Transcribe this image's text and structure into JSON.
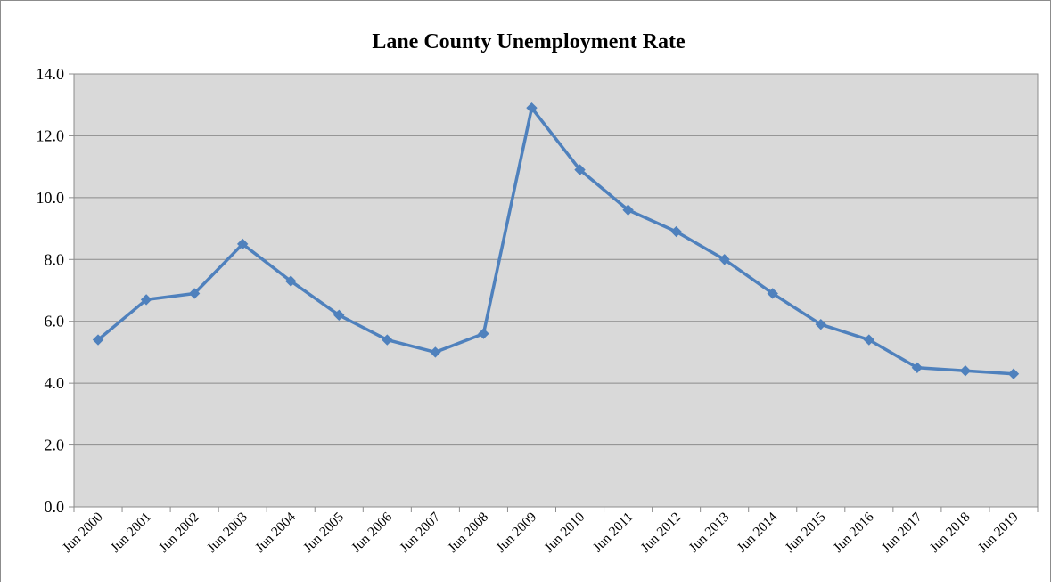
{
  "chart_data": {
    "type": "line",
    "title": "Lane County Unemployment Rate",
    "xlabel": "",
    "ylabel": "",
    "ylim": [
      0,
      14
    ],
    "yticks": [
      "0.0",
      "2.0",
      "4.0",
      "6.0",
      "8.0",
      "10.0",
      "12.0",
      "14.0"
    ],
    "grid": true,
    "legend": "none",
    "categories": [
      "Jun 2000",
      "Jun 2001",
      "Jun 2002",
      "Jun 2003",
      "Jun 2004",
      "Jun 2005",
      "Jun 2006",
      "Jun 2007",
      "Jun 2008",
      "Jun 2009",
      "Jun 2010",
      "Jun 2011",
      "Jun 2012",
      "Jun 2013",
      "Jun 2014",
      "Jun 2015",
      "Jun 2016",
      "Jun 2017",
      "Jun 2018",
      "Jun 2019"
    ],
    "series": [
      {
        "values": [
          5.4,
          6.7,
          6.9,
          8.5,
          7.3,
          6.2,
          5.4,
          5.0,
          5.6,
          12.9,
          10.9,
          9.6,
          8.9,
          8.0,
          6.9,
          5.9,
          5.4,
          4.5,
          4.4,
          4.3
        ]
      }
    ],
    "colors": {
      "line": "#4f81bd",
      "plot_background": "#d9d9d9",
      "grid": "#8c8c8c"
    }
  }
}
